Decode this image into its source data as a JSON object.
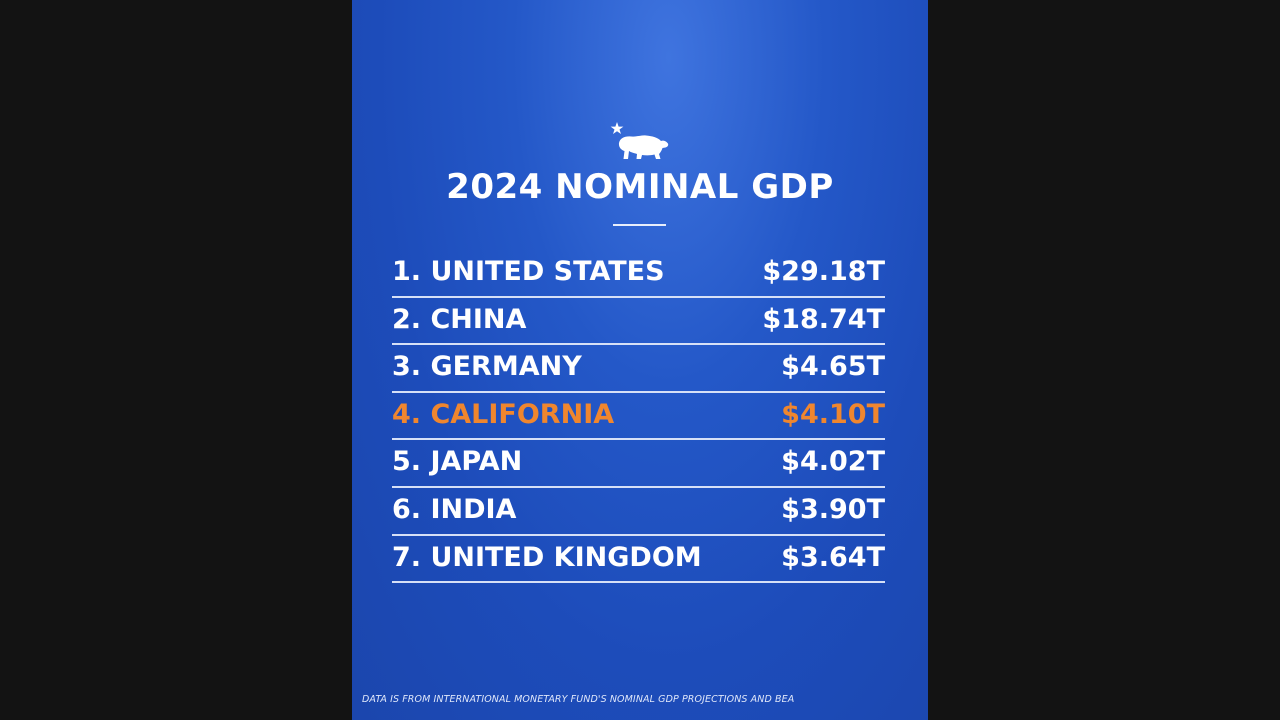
{
  "title": "2024 NOMINAL GDP",
  "footnote": "DATA IS FROM INTERNATIONAL MONETARY FUND'S NOMINAL GDP PROJECTIONS AND BEA",
  "logo_icon": "california-bear-star-icon",
  "colors": {
    "background": "#2458c8",
    "text": "#ffffff",
    "highlight": "#f0862e",
    "divider": "#d6e0f7",
    "outer_frame": "#131313"
  },
  "chart_data": {
    "type": "table",
    "title": "2024 NOMINAL GDP",
    "columns": [
      "rank",
      "name",
      "gdp"
    ],
    "rows": [
      {
        "rank": "1.",
        "name": "UNITED STATES",
        "gdp": "$29.18T",
        "value": 29.18,
        "highlight": false
      },
      {
        "rank": "2.",
        "name": "CHINA",
        "gdp": "$18.74T",
        "value": 18.74,
        "highlight": false
      },
      {
        "rank": "3.",
        "name": "GERMANY",
        "gdp": "$4.65T",
        "value": 4.65,
        "highlight": false
      },
      {
        "rank": "4.",
        "name": "CALIFORNIA",
        "gdp": "$4.10T",
        "value": 4.1,
        "highlight": true
      },
      {
        "rank": "5.",
        "name": "JAPAN",
        "gdp": "$4.02T",
        "value": 4.02,
        "highlight": false
      },
      {
        "rank": "6.",
        "name": "INDIA",
        "gdp": "$3.90T",
        "value": 3.9,
        "highlight": false
      },
      {
        "rank": "7.",
        "name": "UNITED KINGDOM",
        "gdp": "$3.64T",
        "value": 3.64,
        "highlight": false
      }
    ]
  }
}
